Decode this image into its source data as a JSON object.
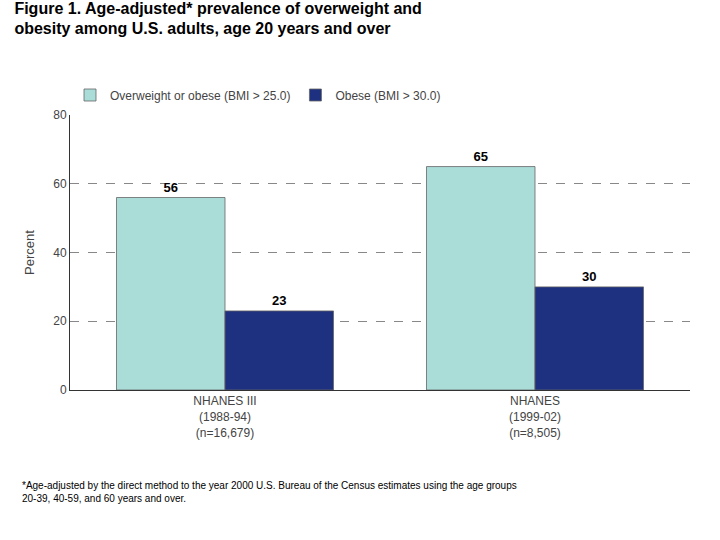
{
  "chart_data": {
    "type": "bar",
    "title": "Figure 1. Age-adjusted* prevalence of overweight and\nobesity among U.S. adults, age 20 years and over",
    "ylabel": "Percent",
    "categories": [
      "NHANES III\n(1988-94)\n(n=16,679)",
      "NHANES\n(1999-02)\n(n=8,505)"
    ],
    "series": [
      {
        "name": "Overweight or obese (BMI > 25.0)",
        "color": "#aadcd8",
        "values": [
          56,
          65
        ]
      },
      {
        "name": "Obese (BMI > 30.0)",
        "color": "#1e3080",
        "values": [
          23,
          30
        ]
      }
    ],
    "ylim": [
      0,
      80
    ],
    "yticks": [
      0,
      20,
      40,
      60,
      80
    ],
    "grid": true,
    "legend": "top",
    "data_labels": true,
    "annotations": [
      "*Age-adjusted by the direct method to the year 2000 U.S. Bureau of the Census estimates using the age groups\n20-39, 40-59, and 60 years and over."
    ]
  }
}
